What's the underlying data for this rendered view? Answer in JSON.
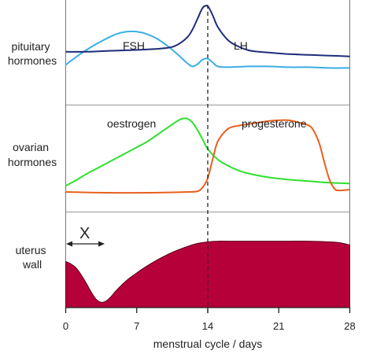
{
  "chart_data": {
    "type": "line",
    "xlabel": "menstrual cycle / days",
    "x_ticks": [
      0,
      7,
      14,
      21,
      28
    ],
    "xlim": [
      0,
      28
    ],
    "reference_line_day": 14,
    "panels": [
      {
        "label": [
          "pituitary",
          "hormones"
        ],
        "series": [
          {
            "name": "FSH",
            "color": "#3aaee6",
            "x": [
              0,
              1,
              2,
              3,
              4,
              5,
              6,
              7,
              8,
              9,
              10,
              11,
              12,
              12.5,
              13,
              13.5,
              14,
              14.5,
              15,
              16,
              18,
              20,
              22,
              24,
              26,
              28
            ],
            "y": [
              0.24,
              0.34,
              0.43,
              0.51,
              0.58,
              0.64,
              0.67,
              0.67,
              0.64,
              0.58,
              0.49,
              0.38,
              0.26,
              0.22,
              0.25,
              0.31,
              0.32,
              0.27,
              0.22,
              0.21,
              0.22,
              0.22,
              0.21,
              0.21,
              0.2,
              0.2
            ]
          },
          {
            "name": "LH",
            "color": "#1f2d7a",
            "x": [
              0,
              2,
              4,
              6,
              8,
              10,
              11,
              12,
              12.5,
              13,
              13.5,
              14,
              14.5,
              15,
              16,
              17,
              18,
              19,
              20,
              22,
              24,
              26,
              28
            ],
            "y": [
              0.41,
              0.41,
              0.42,
              0.43,
              0.44,
              0.46,
              0.5,
              0.6,
              0.7,
              0.84,
              0.98,
              1.0,
              0.88,
              0.73,
              0.56,
              0.48,
              0.43,
              0.41,
              0.4,
              0.38,
              0.37,
              0.36,
              0.35
            ]
          }
        ],
        "annotations": [
          "FSH",
          "LH"
        ]
      },
      {
        "label": [
          "ovarian",
          "hormones"
        ],
        "series": [
          {
            "name": "oestrogen",
            "color": "#2ee02e",
            "x": [
              0,
              1,
              2,
              3,
              4,
              5,
              6,
              7,
              8,
              9,
              10,
              11,
              11.5,
              12,
              12.5,
              13,
              13.5,
              14,
              15,
              16,
              17,
              18,
              20,
              22,
              24,
              26,
              28
            ],
            "y": [
              0.1,
              0.17,
              0.25,
              0.32,
              0.39,
              0.46,
              0.53,
              0.6,
              0.67,
              0.76,
              0.85,
              0.94,
              0.97,
              0.97,
              0.92,
              0.82,
              0.7,
              0.58,
              0.44,
              0.36,
              0.3,
              0.26,
              0.21,
              0.18,
              0.16,
              0.14,
              0.13
            ]
          },
          {
            "name": "progesterone",
            "color": "#e8601c",
            "x": [
              0,
              4,
              8,
              12,
              13,
              13.5,
              14,
              14.5,
              15,
              16,
              17,
              18,
              19,
              20,
              21,
              22,
              23,
              24,
              24.5,
              25,
              25.5,
              26,
              26.5,
              27,
              28
            ],
            "y": [
              0.02,
              0.01,
              0.01,
              0.02,
              0.03,
              0.08,
              0.2,
              0.45,
              0.68,
              0.84,
              0.88,
              0.9,
              0.92,
              0.94,
              0.95,
              0.95,
              0.92,
              0.88,
              0.8,
              0.65,
              0.4,
              0.18,
              0.06,
              0.04,
              0.05
            ]
          }
        ],
        "annotations": [
          "oestrogen",
          "progesterone"
        ]
      },
      {
        "label": [
          "uterus",
          "wall"
        ],
        "type": "area",
        "series": [
          {
            "name": "uterus wall",
            "color": "#b5003a",
            "x": [
              0,
              0.5,
              1,
              1.5,
              2,
              2.5,
              3,
              3.5,
              4,
              4.5,
              5,
              6,
              7,
              8,
              9,
              10,
              11,
              12,
              13,
              14,
              15,
              16,
              18,
              20,
              22,
              24,
              26,
              27,
              28
            ],
            "y": [
              0.62,
              0.59,
              0.54,
              0.45,
              0.34,
              0.22,
              0.12,
              0.08,
              0.1,
              0.16,
              0.24,
              0.37,
              0.47,
              0.56,
              0.64,
              0.71,
              0.77,
              0.82,
              0.86,
              0.88,
              0.89,
              0.89,
              0.89,
              0.89,
              0.89,
              0.89,
              0.88,
              0.87,
              0.84
            ]
          }
        ],
        "annotations": [
          "X"
        ]
      }
    ]
  }
}
